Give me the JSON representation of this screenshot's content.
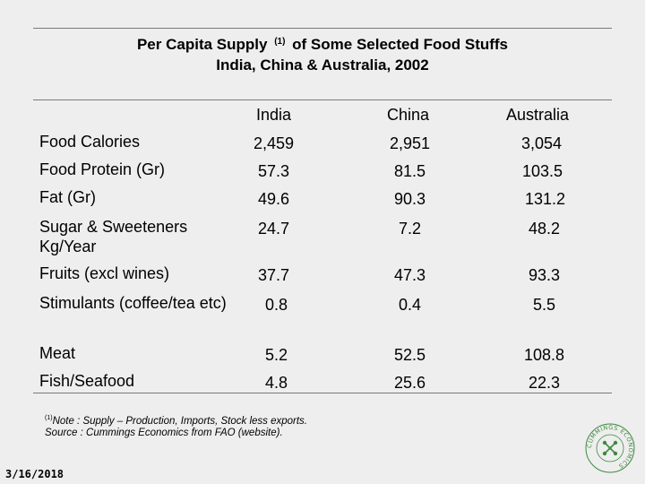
{
  "title": {
    "line1_prefix": "Per Capita Supply",
    "line1_sup": "(1)",
    "line1_suffix": "of Some Selected Food Stuffs",
    "line2": "India, China & Australia, 2002"
  },
  "columns": [
    "India",
    "China",
    "Australia"
  ],
  "rows": [
    {
      "label": "Food Calories",
      "values": [
        "2,459",
        "2,951",
        "3,054"
      ]
    },
    {
      "label": "Food Protein (Gr)",
      "values": [
        "57.3",
        "81.5",
        "103.5"
      ]
    },
    {
      "label": "Fat (Gr)",
      "values": [
        "49.6",
        "90.3",
        "131.2"
      ]
    },
    {
      "label": "Sugar & Sweeteners Kg/Year",
      "values": [
        "24.7",
        "7.2",
        "48.2"
      ]
    },
    {
      "label": "Fruits (excl wines)",
      "values": [
        "37.7",
        "47.3",
        "93.3"
      ]
    },
    {
      "label": "Stimulants (coffee/tea etc)",
      "values": [
        "0.8",
        "0.4",
        "5.5"
      ]
    },
    {
      "label": "Meat",
      "values": [
        "5.2",
        "52.5",
        "108.8"
      ]
    },
    {
      "label": "Fish/Seafood",
      "values": [
        "4.8",
        "25.6",
        "22.3"
      ]
    }
  ],
  "footnote": {
    "sup": "(1)",
    "line1": "Note : Supply – Production, Imports, Stock less exports.",
    "line2": "Source : Cummings Economics from FAO (website)."
  },
  "date": "3/16/2018",
  "logo": {
    "icon": "cummings-economics-logo-icon",
    "text": "CUMMINGS ECONOMICS",
    "color": "#3d8a3d"
  },
  "colors": {
    "background": "#eeeeee",
    "rule": "#7a7a7a"
  }
}
